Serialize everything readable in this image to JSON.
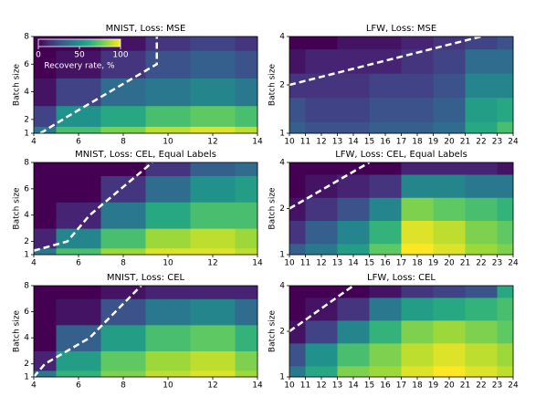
{
  "chart_data": [
    {
      "type": "heatmap",
      "title": "MNIST, Loss: MSE",
      "ylabel": "Batch size",
      "colormap": "viridis",
      "zlim": [
        0,
        100
      ],
      "xlim": [
        4,
        14
      ],
      "xticks": [
        4,
        6,
        8,
        10,
        12,
        14
      ],
      "ylim": [
        1,
        8
      ],
      "yticks": [
        1,
        2,
        4,
        6,
        8
      ],
      "yscale": "linear",
      "x": [
        4,
        6,
        8,
        10,
        12,
        14
      ],
      "y": [
        1,
        2,
        4,
        6,
        8
      ],
      "z": [
        [
          40,
          70,
          80,
          90,
          95,
          90
        ],
        [
          20,
          50,
          60,
          70,
          75,
          70
        ],
        [
          5,
          20,
          35,
          40,
          45,
          40
        ],
        [
          0,
          5,
          15,
          25,
          30,
          25
        ],
        [
          0,
          0,
          5,
          15,
          20,
          15
        ]
      ],
      "line": {
        "x": [
          4.3,
          5.5,
          9.5,
          9.5
        ],
        "y": [
          1,
          2.2,
          6,
          8
        ],
        "color": "#ffffff"
      },
      "colorbar": {
        "label": "Recovery rate, %",
        "ticks": [
          0,
          50,
          100
        ]
      }
    },
    {
      "type": "heatmap",
      "title": "LFW, Loss: MSE",
      "ylabel": "Batch size",
      "colormap": "viridis",
      "zlim": [
        0,
        100
      ],
      "xlim": [
        10,
        24
      ],
      "xticks": [
        10,
        11,
        12,
        13,
        14,
        15,
        16,
        17,
        18,
        19,
        20,
        21,
        22,
        23,
        24
      ],
      "ylim": [
        1,
        4
      ],
      "yticks": [
        1,
        2,
        4
      ],
      "yscale": "log",
      "x": [
        10,
        12,
        14,
        16,
        18,
        20,
        22,
        24
      ],
      "y": [
        1,
        1.4,
        2,
        2.8,
        4
      ],
      "z": [
        [
          30,
          25,
          25,
          30,
          30,
          35,
          60,
          70
        ],
        [
          25,
          20,
          20,
          25,
          25,
          30,
          55,
          60
        ],
        [
          15,
          15,
          15,
          20,
          20,
          25,
          45,
          45
        ],
        [
          5,
          10,
          10,
          10,
          15,
          20,
          35,
          35
        ],
        [
          0,
          0,
          5,
          5,
          10,
          15,
          20,
          25
        ]
      ],
      "line": {
        "x": [
          10,
          22
        ],
        "y": [
          2,
          4
        ],
        "color": "#ffffff"
      }
    },
    {
      "type": "heatmap",
      "title": "MNIST, Loss: CEL, Equal Labels",
      "ylabel": "Batch size",
      "colormap": "viridis",
      "zlim": [
        0,
        100
      ],
      "xlim": [
        4,
        14
      ],
      "xticks": [
        4,
        6,
        8,
        10,
        12,
        14
      ],
      "ylim": [
        1,
        8
      ],
      "yticks": [
        1,
        2,
        4,
        6,
        8
      ],
      "yscale": "linear",
      "x": [
        4,
        6,
        8,
        10,
        12,
        14
      ],
      "y": [
        1,
        2,
        4,
        6,
        8
      ],
      "z": [
        [
          40,
          70,
          85,
          95,
          95,
          90
        ],
        [
          10,
          45,
          70,
          85,
          90,
          85
        ],
        [
          0,
          10,
          40,
          60,
          70,
          70
        ],
        [
          0,
          0,
          15,
          35,
          50,
          55
        ],
        [
          0,
          0,
          0,
          15,
          30,
          35
        ]
      ],
      "line": {
        "x": [
          4,
          5.5,
          6.5,
          9.3
        ],
        "y": [
          1.3,
          2,
          4,
          8
        ],
        "color": "#ffffff"
      }
    },
    {
      "type": "heatmap",
      "title": "LFW, Loss: CEL, Equal Labels",
      "ylabel": "Batch size",
      "colormap": "viridis",
      "zlim": [
        0,
        100
      ],
      "xlim": [
        10,
        24
      ],
      "xticks": [
        10,
        11,
        12,
        13,
        14,
        15,
        16,
        17,
        18,
        19,
        20,
        21,
        22,
        23,
        24
      ],
      "ylim": [
        1,
        4
      ],
      "yticks": [
        1,
        2,
        4
      ],
      "yscale": "log",
      "x": [
        10,
        12,
        14,
        16,
        18,
        20,
        22,
        24
      ],
      "y": [
        1,
        1.4,
        2,
        2.8,
        4
      ],
      "z": [
        [
          30,
          40,
          55,
          75,
          100,
          95,
          85,
          80
        ],
        [
          15,
          30,
          45,
          65,
          95,
          90,
          80,
          75
        ],
        [
          5,
          15,
          25,
          45,
          80,
          75,
          70,
          65
        ],
        [
          0,
          5,
          10,
          15,
          45,
          45,
          40,
          40
        ],
        [
          0,
          0,
          0,
          0,
          10,
          10,
          10,
          5
        ]
      ],
      "line": {
        "x": [
          10,
          15
        ],
        "y": [
          2,
          4
        ],
        "color": "#ffffff"
      }
    },
    {
      "type": "heatmap",
      "title": "MNIST, Loss: CEL",
      "ylabel": "Batch size",
      "colormap": "viridis",
      "zlim": [
        0,
        100
      ],
      "xlim": [
        4,
        14
      ],
      "xticks": [
        4,
        6,
        8,
        10,
        12,
        14
      ],
      "ylim": [
        1,
        8
      ],
      "yticks": [
        1,
        2,
        4,
        6,
        8
      ],
      "yscale": "linear",
      "x": [
        4,
        6,
        8,
        10,
        12,
        14
      ],
      "y": [
        1,
        2,
        4,
        6,
        8
      ],
      "z": [
        [
          40,
          65,
          80,
          90,
          95,
          85
        ],
        [
          10,
          55,
          75,
          85,
          90,
          80
        ],
        [
          0,
          30,
          55,
          70,
          75,
          65
        ],
        [
          0,
          5,
          25,
          40,
          45,
          35
        ],
        [
          0,
          0,
          5,
          10,
          10,
          10
        ]
      ],
      "line": {
        "x": [
          4,
          4.5,
          6.5,
          8.8
        ],
        "y": [
          1,
          2,
          4,
          8
        ],
        "color": "#ffffff"
      }
    },
    {
      "type": "heatmap",
      "title": "LFW, Loss: CEL",
      "ylabel": "Batch size",
      "colormap": "viridis",
      "zlim": [
        0,
        100
      ],
      "xlim": [
        10,
        24
      ],
      "xticks": [
        10,
        11,
        12,
        13,
        14,
        15,
        16,
        17,
        18,
        19,
        20,
        21,
        22,
        23,
        24
      ],
      "ylim": [
        1,
        4
      ],
      "yticks": [
        1,
        2,
        4
      ],
      "yscale": "log",
      "x": [
        10,
        12,
        14,
        16,
        18,
        20,
        22,
        24
      ],
      "y": [
        1,
        1.4,
        2,
        2.8,
        4
      ],
      "z": [
        [
          40,
          60,
          80,
          85,
          95,
          100,
          95,
          90
        ],
        [
          25,
          50,
          70,
          80,
          90,
          95,
          90,
          85
        ],
        [
          5,
          20,
          45,
          65,
          80,
          85,
          80,
          75
        ],
        [
          0,
          5,
          15,
          40,
          55,
          60,
          65,
          70
        ],
        [
          0,
          0,
          0,
          5,
          15,
          20,
          25,
          60
        ]
      ],
      "line": {
        "x": [
          10,
          14
        ],
        "y": [
          2,
          4
        ],
        "color": "#ffffff"
      }
    }
  ]
}
